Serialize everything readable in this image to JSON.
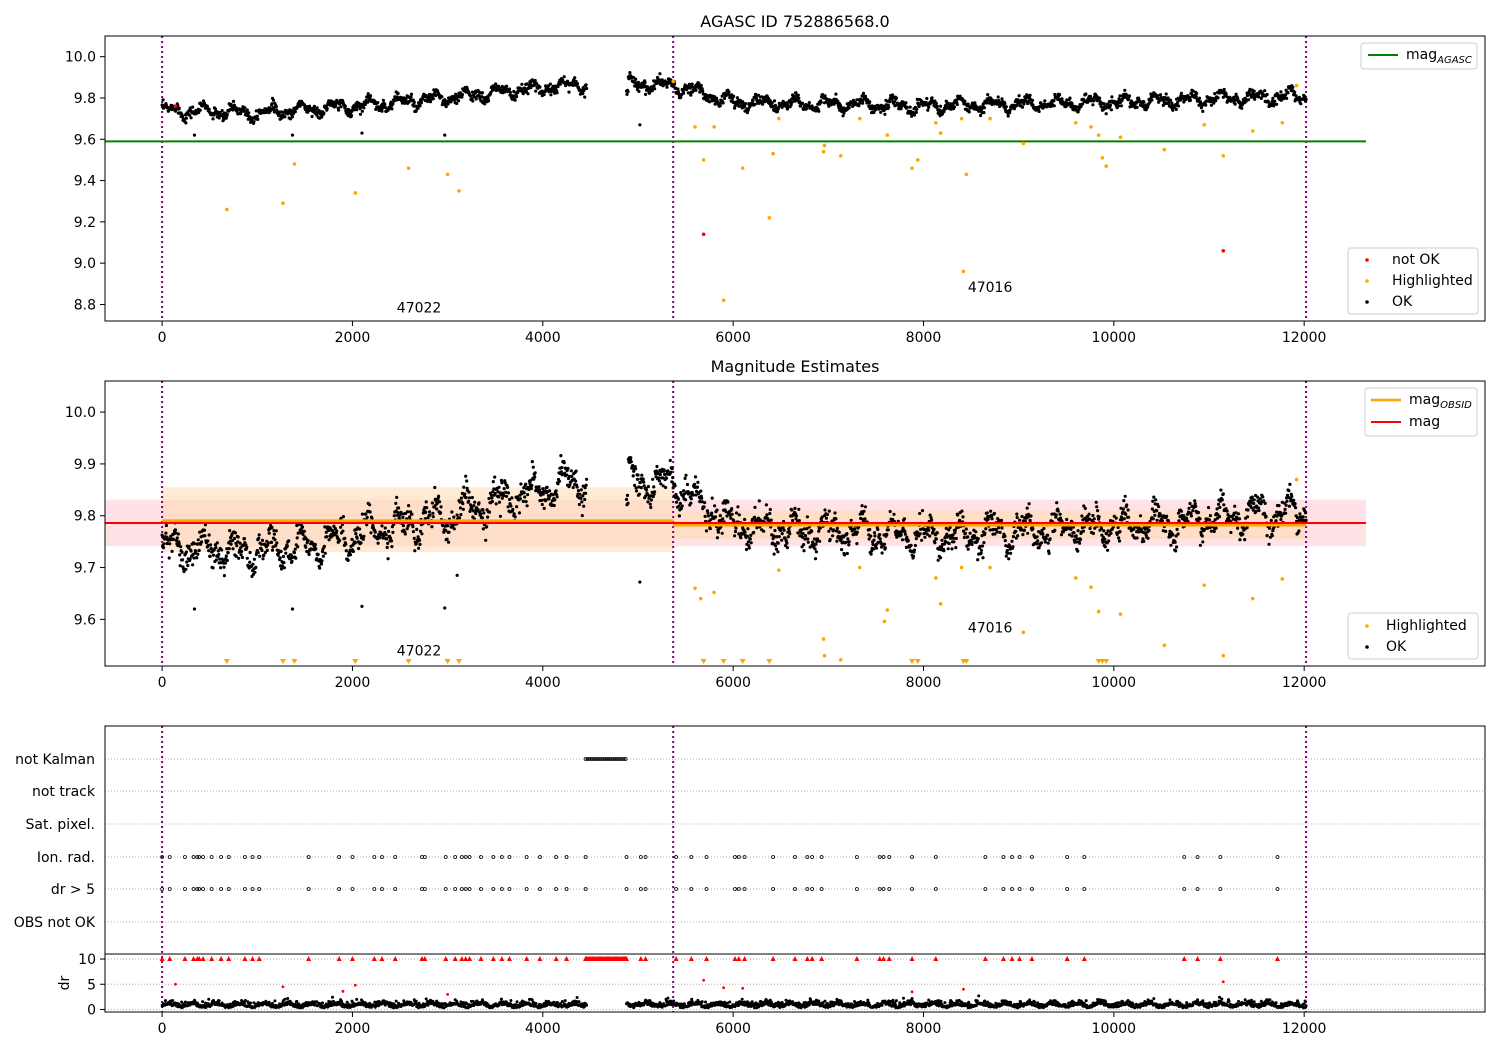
{
  "colors": {
    "ok": "#000000",
    "not_ok": "#ff0000",
    "highlighted": "#ffa500",
    "mag_agasc_line": "#008000",
    "mag_obsid_line": "#ffa500",
    "mag_line": "#ff0000",
    "obsid_boundary": "#800080",
    "obs_band": "#ffdab0",
    "mag_band": "#ffd6dc"
  },
  "chart_data": [
    {
      "type": "scatter",
      "title": "AGASC ID 752886568.0",
      "xlim": [
        -600,
        13900
      ],
      "ylim": [
        8.72,
        10.1
      ],
      "xticks": [
        0,
        2000,
        4000,
        6000,
        8000,
        10000,
        12000
      ],
      "yticks": [
        8.8,
        9.0,
        9.2,
        9.4,
        9.6,
        9.8,
        10.0
      ],
      "ytick_labels": [
        "8.8",
        "9.0",
        "9.2",
        "9.4",
        "9.6",
        "9.8",
        "10.0"
      ],
      "legend_top": [
        {
          "label": "mag",
          "sub": "AGASC",
          "kind": "line",
          "color": "#008000"
        }
      ],
      "legend_bottom": [
        {
          "label": "not OK",
          "kind": "dot",
          "color": "#ff0000"
        },
        {
          "label": "Highlighted",
          "kind": "dot",
          "color": "#ffa500"
        },
        {
          "label": "OK",
          "kind": "dot",
          "color": "#000000"
        }
      ],
      "mag_agasc": 9.59,
      "obsid_boundaries": [
        0,
        5370,
        12020
      ],
      "obsid_labels": [
        {
          "text": "47022",
          "x": 2700,
          "y": 8.76
        },
        {
          "text": "47016",
          "x": 8700,
          "y": 8.86
        }
      ],
      "ok_trend": [
        [
          0,
          9.74
        ],
        [
          1000,
          9.73
        ],
        [
          2000,
          9.76
        ],
        [
          3000,
          9.8
        ],
        [
          4000,
          9.85
        ],
        [
          4450,
          9.87
        ]
      ],
      "ok_trend2": [
        [
          4900,
          9.87
        ],
        [
          5370,
          9.86
        ],
        [
          6000,
          9.78
        ],
        [
          8000,
          9.76
        ],
        [
          10000,
          9.78
        ],
        [
          12000,
          9.81
        ]
      ],
      "ok_outliers": [
        [
          340,
          9.62
        ],
        [
          1370,
          9.62
        ],
        [
          2100,
          9.63
        ],
        [
          2970,
          9.62
        ],
        [
          5020,
          9.67
        ]
      ],
      "highlighted_points": [
        [
          680,
          9.26
        ],
        [
          1270,
          9.29
        ],
        [
          1390,
          9.48
        ],
        [
          2030,
          9.34
        ],
        [
          2590,
          9.46
        ],
        [
          3000,
          9.43
        ],
        [
          3120,
          9.35
        ],
        [
          5370,
          9.88
        ],
        [
          5600,
          9.66
        ],
        [
          5690,
          9.5
        ],
        [
          5800,
          9.66
        ],
        [
          5900,
          8.82
        ],
        [
          6100,
          9.46
        ],
        [
          6380,
          9.22
        ],
        [
          6420,
          9.53
        ],
        [
          6480,
          9.7
        ],
        [
          6950,
          9.54
        ],
        [
          6960,
          9.57
        ],
        [
          7130,
          9.52
        ],
        [
          7330,
          9.7
        ],
        [
          7620,
          9.62
        ],
        [
          7880,
          9.46
        ],
        [
          7940,
          9.5
        ],
        [
          8130,
          9.68
        ],
        [
          8180,
          9.63
        ],
        [
          8400,
          9.7
        ],
        [
          8420,
          8.96
        ],
        [
          8450,
          9.43
        ],
        [
          8700,
          9.7
        ],
        [
          9050,
          9.58
        ],
        [
          9600,
          9.68
        ],
        [
          9760,
          9.66
        ],
        [
          9840,
          9.62
        ],
        [
          9880,
          9.51
        ],
        [
          9920,
          9.47
        ],
        [
          10070,
          9.61
        ],
        [
          10530,
          9.55
        ],
        [
          10950,
          9.67
        ],
        [
          11150,
          9.52
        ],
        [
          11460,
          9.64
        ],
        [
          11770,
          9.68
        ],
        [
          11920,
          9.86
        ]
      ],
      "not_ok_points": [
        [
          140,
          9.76
        ],
        [
          5690,
          9.14
        ],
        [
          11150,
          9.06
        ]
      ]
    },
    {
      "type": "scatter",
      "title": "Magnitude Estimates",
      "xlim": [
        -600,
        13900
      ],
      "ylim": [
        9.51,
        10.06
      ],
      "xticks": [
        0,
        2000,
        4000,
        6000,
        8000,
        10000,
        12000
      ],
      "yticks": [
        9.6,
        9.7,
        9.8,
        9.9,
        10.0
      ],
      "ytick_labels": [
        "9.6",
        "9.7",
        "9.8",
        "9.9",
        "10.0"
      ],
      "legend_top": [
        {
          "label": "mag",
          "sub": "OBSID",
          "kind": "line",
          "color": "#ffa500"
        },
        {
          "label": "mag",
          "sub": "",
          "kind": "line",
          "color": "#ff0000"
        }
      ],
      "legend_bottom": [
        {
          "label": "Highlighted",
          "kind": "dot",
          "color": "#ffa500"
        },
        {
          "label": "OK",
          "kind": "dot",
          "color": "#000000"
        }
      ],
      "mag": 9.786,
      "mag_band": [
        9.741,
        9.831
      ],
      "obsid_segments": [
        {
          "x0": 0,
          "x1": 5370,
          "mag": 9.79,
          "band": [
            9.73,
            9.855
          ]
        },
        {
          "x0": 5370,
          "x1": 12020,
          "mag": 9.782,
          "band": [
            9.755,
            9.81
          ]
        }
      ],
      "obsid_boundaries": [
        0,
        5370,
        12020
      ],
      "obsid_labels": [
        {
          "text": "47022",
          "x": 2700,
          "y": 9.53
        },
        {
          "text": "47016",
          "x": 8700,
          "y": 9.575
        }
      ],
      "ok_trend": [
        [
          0,
          9.74
        ],
        [
          1000,
          9.73
        ],
        [
          2000,
          9.76
        ],
        [
          3000,
          9.8
        ],
        [
          4000,
          9.85
        ],
        [
          4450,
          9.87
        ]
      ],
      "ok_trend2": [
        [
          4900,
          9.87
        ],
        [
          5370,
          9.86
        ],
        [
          6000,
          9.78
        ],
        [
          8000,
          9.76
        ],
        [
          10000,
          9.78
        ],
        [
          12000,
          9.81
        ]
      ],
      "ok_outliers": [
        [
          340,
          9.62
        ],
        [
          1370,
          9.62
        ],
        [
          2100,
          9.625
        ],
        [
          2970,
          9.622
        ],
        [
          5020,
          9.672
        ],
        [
          3100,
          9.685
        ]
      ],
      "highlighted_points": [
        [
          5600,
          9.66
        ],
        [
          5660,
          9.64
        ],
        [
          5800,
          9.652
        ],
        [
          6480,
          9.695
        ],
        [
          6950,
          9.562
        ],
        [
          6960,
          9.53
        ],
        [
          7130,
          9.522
        ],
        [
          7330,
          9.7
        ],
        [
          7590,
          9.596
        ],
        [
          7620,
          9.618
        ],
        [
          8130,
          9.68
        ],
        [
          8180,
          9.63
        ],
        [
          8400,
          9.7
        ],
        [
          8700,
          9.7
        ],
        [
          9050,
          9.575
        ],
        [
          9600,
          9.68
        ],
        [
          9760,
          9.662
        ],
        [
          9840,
          9.615
        ],
        [
          10070,
          9.61
        ],
        [
          10530,
          9.55
        ],
        [
          10950,
          9.666
        ],
        [
          11150,
          9.53
        ],
        [
          11460,
          9.64
        ],
        [
          11770,
          9.678
        ],
        [
          11920,
          9.87
        ]
      ],
      "highlighted_clipped_x": [
        680,
        1270,
        1390,
        2030,
        2590,
        3000,
        3120,
        5690,
        5900,
        6100,
        6380,
        7880,
        7940,
        8420,
        8450,
        9840,
        9880,
        9920
      ]
    },
    {
      "type": "scatter",
      "title": "",
      "xlim": [
        -600,
        13900
      ],
      "xticks": [
        0,
        2000,
        4000,
        6000,
        8000,
        10000,
        12000
      ],
      "flag_rows": [
        "not Kalman",
        "not track",
        "Sat. pixel.",
        "Ion. rad.",
        "dr > 5",
        "OBS not OK"
      ],
      "not_kalman_range": [
        4450,
        4880
      ],
      "flag_x": [
        0,
        80,
        240,
        330,
        370,
        390,
        430,
        520,
        620,
        700,
        870,
        950,
        1020,
        1540,
        1860,
        2000,
        2230,
        2310,
        2450,
        2730,
        2760,
        2980,
        3080,
        3150,
        3190,
        3230,
        3350,
        3480,
        3570,
        3650,
        3830,
        3970,
        4140,
        4250,
        4450,
        4880,
        5030,
        5080,
        5400,
        5560,
        5720,
        6020,
        6060,
        6120,
        6420,
        6650,
        6780,
        6830,
        6930,
        7300,
        7540,
        7580,
        7640,
        7880,
        8130,
        8650,
        8840,
        8930,
        9010,
        9140,
        9510,
        9690,
        10740,
        10880,
        11120,
        11720
      ],
      "dr_ylim": [
        -0.5,
        11
      ],
      "dr_yticks": [
        0,
        5,
        10
      ],
      "dr_label": "dr",
      "dr_clipped_x": [
        0,
        80,
        240,
        330,
        370,
        390,
        430,
        520,
        620,
        700,
        870,
        950,
        1020,
        1540,
        1860,
        2000,
        2230,
        2310,
        2450,
        2730,
        2760,
        2980,
        3080,
        3150,
        3190,
        3230,
        3350,
        3480,
        3570,
        3650,
        3830,
        3970,
        4140,
        4250,
        4450,
        4880,
        5030,
        5080,
        5400,
        5560,
        5720,
        6020,
        6060,
        6120,
        6420,
        6650,
        6780,
        6830,
        6930,
        7300,
        7540,
        7580,
        7640,
        7880,
        8130,
        8650,
        8840,
        8930,
        9010,
        9140,
        9510,
        9690,
        10740,
        10880,
        11120,
        11720
      ],
      "dr_red_points": [
        [
          140,
          5.0
        ],
        [
          1270,
          4.5
        ],
        [
          1900,
          3.6
        ],
        [
          2030,
          4.8
        ],
        [
          3000,
          3.0
        ],
        [
          5690,
          5.8
        ],
        [
          5900,
          4.3
        ],
        [
          6100,
          4.2
        ],
        [
          7880,
          3.5
        ],
        [
          8420,
          4.0
        ],
        [
          11150,
          5.5
        ]
      ]
    }
  ]
}
